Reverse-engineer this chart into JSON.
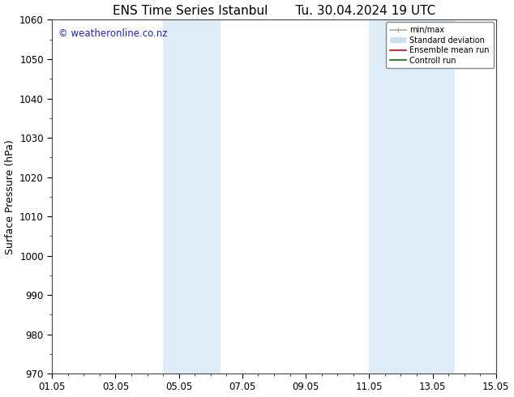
{
  "title_left": "ENS Time Series Istanbul",
  "title_right": "Tu. 30.04.2024 19 UTC",
  "ylabel": "Surface Pressure (hPa)",
  "ylim": [
    970,
    1060
  ],
  "yticks": [
    970,
    980,
    990,
    1000,
    1010,
    1020,
    1030,
    1040,
    1050,
    1060
  ],
  "xlim_start": 0,
  "xlim_end": 14,
  "xtick_labels": [
    "01.05",
    "03.05",
    "05.05",
    "07.05",
    "09.05",
    "11.05",
    "13.05",
    "15.05"
  ],
  "xtick_positions": [
    0,
    2,
    4,
    6,
    8,
    10,
    12,
    14
  ],
  "shaded_bands": [
    {
      "x_start": 3.5,
      "x_end": 5.3
    },
    {
      "x_start": 10.0,
      "x_end": 12.7
    }
  ],
  "shaded_color": "#deedf8",
  "watermark_text": "© weatheronline.co.nz",
  "watermark_color": "#2222cc",
  "watermark_fontsize": 8.5,
  "background_color": "#ffffff",
  "plot_bg_color": "#ffffff",
  "legend_items": [
    {
      "label": "min/max",
      "color": "#aaaaaa",
      "lw": 1.2,
      "style": "solid"
    },
    {
      "label": "Standard deviation",
      "color": "#cce0f0",
      "lw": 5,
      "style": "solid"
    },
    {
      "label": "Ensemble mean run",
      "color": "#dd0000",
      "lw": 1.2,
      "style": "solid"
    },
    {
      "label": "Controll run",
      "color": "#007700",
      "lw": 1.2,
      "style": "solid"
    }
  ],
  "title_fontsize": 11,
  "axis_label_fontsize": 9,
  "tick_fontsize": 8.5
}
